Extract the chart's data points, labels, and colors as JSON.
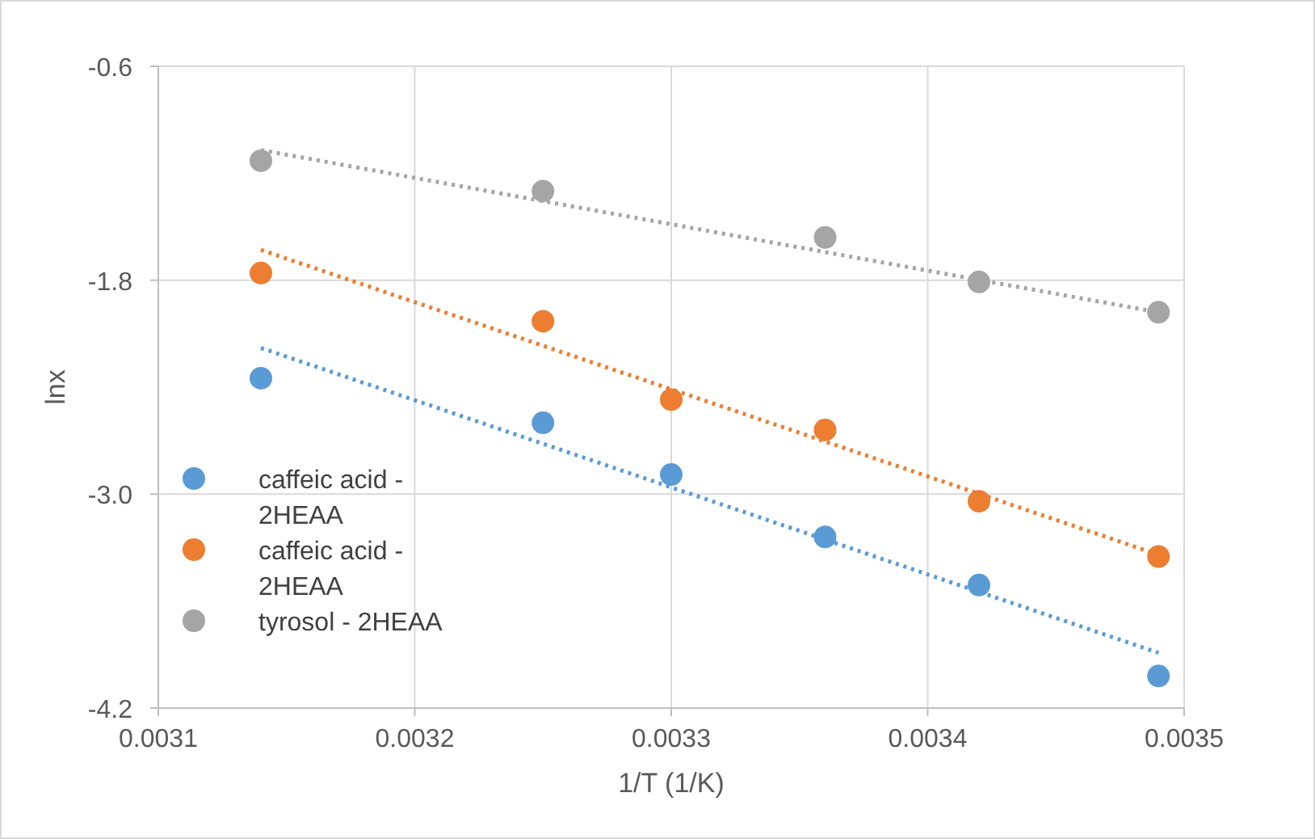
{
  "chart_data": {
    "type": "scatter",
    "xlabel": "1/T (1/K)",
    "ylabel": "lnx",
    "xlim": [
      0.0031,
      0.0035
    ],
    "xticks": [
      0.0031,
      0.0032,
      0.0033,
      0.0034,
      0.0035
    ],
    "ylim": [
      -4.2,
      -0.6
    ],
    "yticks": [
      -0.6,
      -1.8,
      {
        "value": -3,
        "label": "-3.0"
      },
      -4.2
    ],
    "grid": true,
    "legend": "bottom left",
    "marker": "circle",
    "series": [
      {
        "name": "caffeic acid - 2HEAA",
        "color": "#5b9bd5",
        "x": [
          0.00314,
          0.00325,
          0.0033,
          0.00336,
          0.00342,
          0.00349
        ],
        "values": [
          -2.35,
          -2.6,
          -2.89,
          -3.24,
          -3.51,
          -4.02
        ]
      },
      {
        "name": "caffeic acid - 2HEAA",
        "color": "#ed7d31",
        "x": [
          0.00314,
          0.00325,
          0.0033,
          0.00336,
          0.00342,
          0.00349
        ],
        "values": [
          -1.76,
          -2.03,
          -2.47,
          -2.64,
          -3.04,
          -3.35
        ]
      },
      {
        "name": "tyrosol - 2HEAA",
        "color": "#a5a5a5",
        "x": [
          0.00314,
          0.00325,
          0.00336,
          0.00342,
          0.00349
        ],
        "values": [
          -1.13,
          -1.3,
          -1.56,
          -1.81,
          -1.98
        ]
      },
      {
        "type": "line",
        "color": "#5b9bd5",
        "line_style": "dotted",
        "marker": "none",
        "x": [
          0.00314,
          0.00349
        ],
        "values": [
          -2.18,
          -3.89
        ]
      },
      {
        "type": "line",
        "color": "#ed7d31",
        "line_style": "dotted",
        "marker": "none",
        "x": [
          0.00314,
          0.00349
        ],
        "values": [
          -1.63,
          -3.34
        ]
      },
      {
        "type": "line",
        "color": "#a5a5a5",
        "line_style": "dotted",
        "marker": "none",
        "x": [
          0.00314,
          0.00349
        ],
        "values": [
          -1.07,
          -1.98
        ]
      }
    ]
  }
}
